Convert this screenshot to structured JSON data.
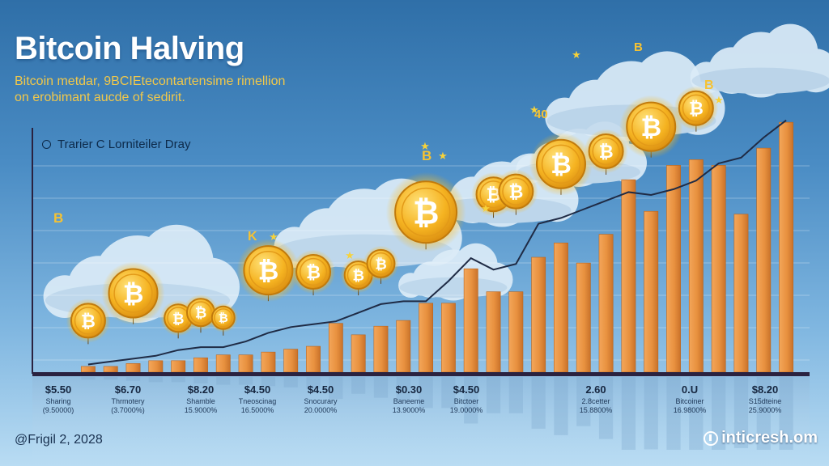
{
  "header": {
    "title": "Bitcoin Halving",
    "subtitle_line1": "Bitcoin metdar, 9BCIEtecontartensime rimellion",
    "subtitle_line2": "on erobimant aucde of sedirit."
  },
  "legend": {
    "label": "Trarier C Lorniteiler Dray"
  },
  "footer": {
    "date": "@Frigil 2, 2028",
    "brand": "inticresh.om"
  },
  "annotations": [
    {
      "text": "B"
    },
    {
      "text": "B"
    },
    {
      "text": "K"
    },
    {
      "text": "B"
    },
    {
      "text": "40"
    },
    {
      "text": "B"
    },
    {
      "text": "B"
    }
  ],
  "colors": {
    "bar": "#e8913f",
    "coin": "#f5b321",
    "line": "#1f2b45",
    "axis": "#2a2240"
  },
  "chart_data": {
    "type": "bar",
    "title": "Bitcoin Halving",
    "xlabel": "",
    "ylabel": "",
    "ylim": [
      0,
      100
    ],
    "x_tick_labels": [
      {
        "value": "$5.50",
        "note1": "Sharing",
        "note2": "(9.50000)"
      },
      {
        "value": "$6.70",
        "note1": "Thrmotery",
        "note2": "(3.7000%)"
      },
      {
        "value": "$8.20",
        "note1": "Shamble",
        "note2": "15.9000%"
      },
      {
        "value": "$4.50",
        "note1": "Tneoscinag",
        "note2": "16.5000%"
      },
      {
        "value": "$4.50",
        "note1": "Snocurary",
        "note2": "20.0000%"
      },
      {
        "value": "$0.30",
        "note1": "Baneeme",
        "note2": "13.9000%"
      },
      {
        "value": "$4.50",
        "note1": "Bitctoer",
        "note2": "19.0000%"
      },
      {
        "value": "2.60",
        "note1": "2.8cetter",
        "note2": "15.8800%"
      },
      {
        "value": "0.U",
        "note1": "Bitcoiner",
        "note2": "16.9800%"
      },
      {
        "value": "$8.20",
        "note1": "S15dteine",
        "note2": "25.9000%"
      }
    ],
    "values": [
      2,
      2,
      3,
      4,
      4,
      5,
      6,
      6,
      7,
      8,
      9,
      17,
      13,
      16,
      18,
      24,
      24,
      36,
      28,
      28,
      40,
      45,
      38,
      48,
      67,
      56,
      72,
      74,
      72,
      55,
      78,
      87
    ],
    "series": [
      {
        "name": "",
        "values": [
          1,
          2,
          3,
          4,
          6,
          7,
          7,
          9,
          12,
          14,
          15,
          16,
          19,
          22,
          23,
          23,
          30,
          38,
          34,
          36,
          50,
          52,
          55,
          58,
          61,
          60,
          62,
          65,
          71,
          73,
          80,
          86
        ]
      }
    ],
    "coins": [
      {
        "bar": 0,
        "level": 12,
        "size": "m"
      },
      {
        "bar": 2,
        "level": 19,
        "size": "l"
      },
      {
        "bar": 4,
        "level": 14,
        "size": "s"
      },
      {
        "bar": 5,
        "level": 16,
        "size": "s"
      },
      {
        "bar": 6,
        "level": 15,
        "size": "xs"
      },
      {
        "bar": 8,
        "level": 27,
        "size": "l"
      },
      {
        "bar": 10,
        "level": 29,
        "size": "m"
      },
      {
        "bar": 12,
        "level": 29,
        "size": "s"
      },
      {
        "bar": 13,
        "level": 33,
        "size": "s"
      },
      {
        "bar": 15,
        "level": 45,
        "size": "xl"
      },
      {
        "bar": 18,
        "level": 56,
        "size": "m"
      },
      {
        "bar": 19,
        "level": 57,
        "size": "m"
      },
      {
        "bar": 21,
        "level": 64,
        "size": "l"
      },
      {
        "bar": 23,
        "level": 71,
        "size": "m"
      },
      {
        "bar": 25,
        "level": 77,
        "size": "l"
      },
      {
        "bar": 27,
        "level": 86,
        "size": "m"
      }
    ],
    "grid": true,
    "legend_position": "top-left"
  }
}
